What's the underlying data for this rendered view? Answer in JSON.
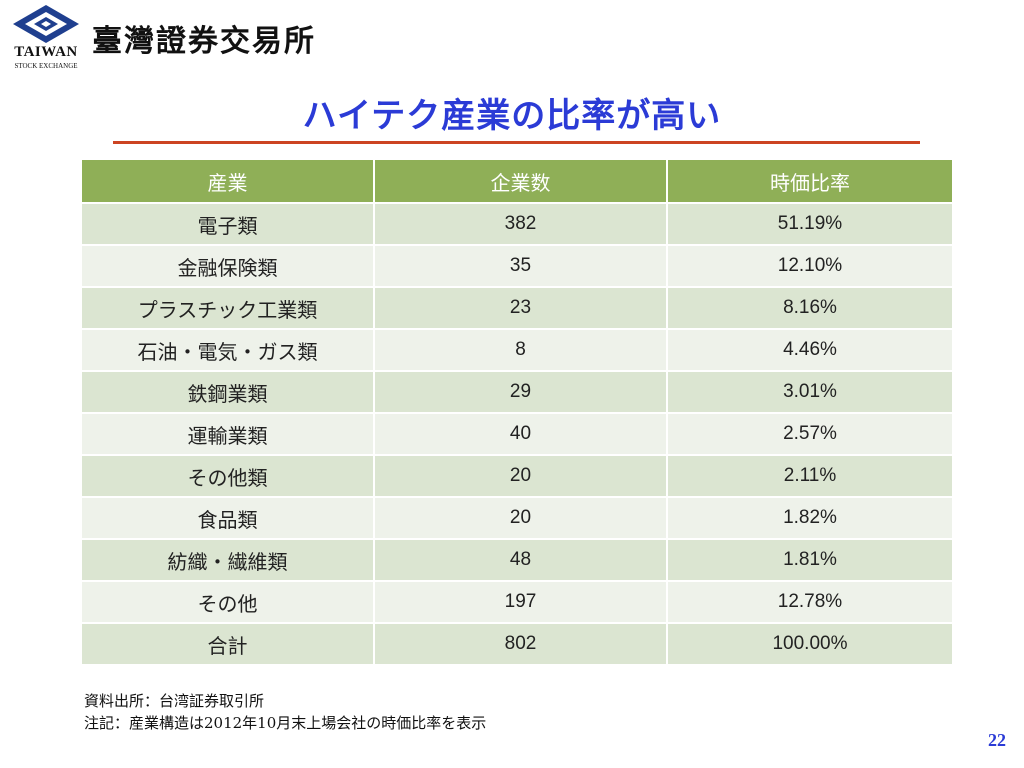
{
  "header": {
    "logo_icon": "taiwan-stock-exchange-logo",
    "logo_word": "TAIWAN",
    "logo_sub": "STOCK EXCHANGE",
    "org_name": "臺灣證券交易所"
  },
  "slide": {
    "title": "ハイテク産業の比率が高い",
    "title_color": "#2b3bd6",
    "rule_color": "#cc4422"
  },
  "table": {
    "header_color": "#8faf57",
    "columns": [
      "産業",
      "企業数",
      "時価比率"
    ],
    "rows": [
      {
        "industry": "電子類",
        "companies": "382",
        "ratio": "51.19%"
      },
      {
        "industry": "金融保険類",
        "companies": "35",
        "ratio": "12.10%"
      },
      {
        "industry": "プラスチック工業類",
        "companies": "23",
        "ratio": "8.16%"
      },
      {
        "industry": "石油・電気・ガス類",
        "companies": "8",
        "ratio": "4.46%"
      },
      {
        "industry": "鉄鋼業類",
        "companies": "29",
        "ratio": "3.01%"
      },
      {
        "industry": "運輸業類",
        "companies": "40",
        "ratio": "2.57%"
      },
      {
        "industry": "その他類",
        "companies": "20",
        "ratio": "2.11%"
      },
      {
        "industry": "食品類",
        "companies": "20",
        "ratio": "1.82%"
      },
      {
        "industry": "紡織・繊維類",
        "companies": "48",
        "ratio": "1.81%"
      },
      {
        "industry": "その他",
        "companies": "197",
        "ratio": "12.78%"
      },
      {
        "industry": "合計",
        "companies": "802",
        "ratio": "100.00%"
      }
    ]
  },
  "notes": {
    "source": "資料出所：台湾証券取引所",
    "remark": "注記：産業構造は2012年10月末上場会社の時価比率を表示"
  },
  "page_number": "22"
}
